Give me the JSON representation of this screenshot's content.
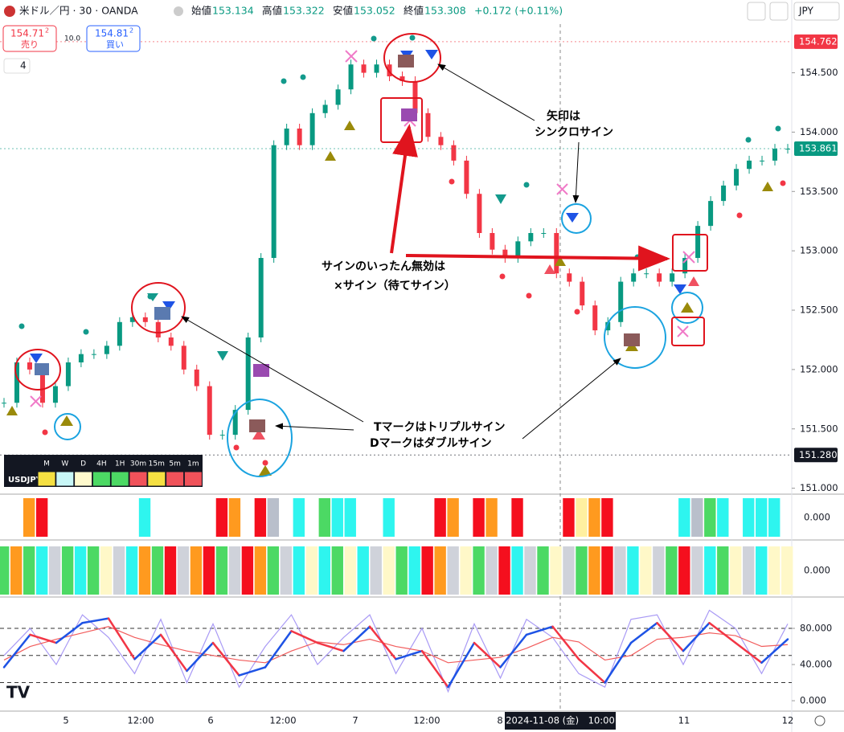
{
  "header": {
    "symbol": "米ドル／円 · 30 · OANDA",
    "open_label": "始値",
    "open": "153.134",
    "high_label": "高値",
    "high": "153.322",
    "low_label": "安値",
    "low": "153.052",
    "close_label": "終値",
    "close": "153.308",
    "change": "+0.172 (+0.11%)",
    "currency": "JPY"
  },
  "trade": {
    "sell_price": "154.71",
    "sell_sup": "2",
    "sell_label": "売り",
    "spread": "10.0",
    "buy_price": "154.81",
    "buy_sup": "2",
    "buy_label": "買い",
    "indicators_count": "4"
  },
  "table": {
    "symbol": "USDJPY",
    "timeframes": [
      "M",
      "W",
      "D",
      "4H",
      "1H",
      "30m",
      "15m",
      "5m",
      "1m"
    ],
    "colors": [
      "#f5e042",
      "#c8f7f7",
      "#fffacd",
      "#4cd964",
      "#4cd964",
      "#f0525a",
      "#f5e042",
      "#f0525a",
      "#f0525a"
    ]
  },
  "annotations": {
    "arrow_note": [
      "矢印は",
      "シンクロサイン"
    ],
    "cancel_note": [
      "サインのいったん無効は",
      "×サイン（待てサイン）"
    ],
    "mark_note": [
      "Tマークはトリプルサイン",
      "Dマークはダブルサイン"
    ]
  },
  "chart_data": [
    {
      "type": "candlestick",
      "up_color": "#089981",
      "down_color": "#f23645",
      "close": [
        151.72,
        152.06,
        152.0,
        151.72,
        151.86,
        152.06,
        152.13,
        152.13,
        152.2,
        152.4,
        152.44,
        152.4,
        152.27,
        152.2,
        152.0,
        151.86,
        151.45,
        151.45,
        151.66,
        152.27,
        152.94,
        153.89,
        154.03,
        153.89,
        154.16,
        154.23,
        154.36,
        154.57,
        154.5,
        154.57,
        154.47,
        154.43,
        154.16,
        153.96,
        153.89,
        153.76,
        153.48,
        153.15,
        153.01,
        152.94,
        153.08,
        153.15,
        153.15,
        152.81,
        152.74,
        152.54,
        152.33,
        152.4,
        152.74,
        152.81,
        152.81,
        152.74,
        152.81,
        152.94,
        153.21,
        153.42,
        153.55,
        153.69,
        153.76,
        153.76,
        153.86,
        153.86
      ],
      "ylim": [
        150.95,
        154.91
      ],
      "yticks": [
        {
          "value": 151,
          "label": "151.000"
        },
        {
          "value": 151.5,
          "label": "151.500"
        },
        {
          "value": 152,
          "label": "152.000"
        },
        {
          "value": 152.5,
          "label": "152.500"
        },
        {
          "value": 153,
          "label": "153.000"
        },
        {
          "value": 153.5,
          "label": "153.500"
        },
        {
          "value": 154,
          "label": "154.000"
        },
        {
          "value": 154.5,
          "label": "154.500"
        }
      ],
      "price_badges": [
        {
          "value": 154.762,
          "label": "154.762",
          "color": "#f23645"
        },
        {
          "value": 153.861,
          "label": "153.861",
          "color": "#089981"
        },
        {
          "value": 151.28,
          "label": "151.280",
          "color": "#131722"
        }
      ],
      "xlabels": [
        "5",
        "12:00",
        "6",
        "12:00",
        "7",
        "12:00",
        "8",
        "2024-11-08 (金)　10:00",
        "11",
        "12"
      ]
    },
    {
      "type": "stripes",
      "palette": {
        "r": "#f50f1e",
        "o": "#ff9a1f",
        "y": "#fff0a0",
        "c": "#2ef5ef",
        "g": "#4cd964",
        "s": "#b9bfcb",
        "l": "#fff8c8"
      },
      "values": [
        null,
        null,
        "o",
        "r",
        null,
        null,
        null,
        null,
        null,
        null,
        null,
        "c",
        null,
        null,
        null,
        null,
        null,
        "r",
        "o",
        null,
        "r",
        "s",
        null,
        "c",
        null,
        "g",
        "c",
        "c",
        null,
        null,
        "c",
        null,
        null,
        null,
        "r",
        "o",
        null,
        "r",
        "o",
        null,
        "r",
        null,
        null,
        null,
        "r",
        "y",
        "o",
        "r",
        null,
        null,
        null,
        null,
        null,
        "c",
        "s",
        "g",
        "c",
        null,
        "c",
        "c",
        "c",
        null
      ],
      "level": {
        "value": 0,
        "label": "0.000"
      }
    },
    {
      "type": "stripes",
      "palette": {
        "r": "#f50f1e",
        "o": "#ff9a1f",
        "y": "#fff0a0",
        "c": "#2ef5ef",
        "g": "#4cd964",
        "s": "#cfd2da",
        "l": "#fff8c8"
      },
      "values": [
        "g",
        "o",
        "g",
        "c",
        "s",
        "g",
        "c",
        "g",
        "l",
        "s",
        "c",
        "o",
        "g",
        "r",
        "s",
        "o",
        "r",
        "g",
        "s",
        "r",
        "o",
        "g",
        "s",
        "c",
        "l",
        "c",
        "g",
        "l",
        "c",
        "s",
        "l",
        "g",
        "c",
        "r",
        "o",
        "s",
        "l",
        "g",
        "s",
        "r",
        "c",
        "s",
        "g",
        "l",
        "s",
        "g",
        "o",
        "r",
        "s",
        "c",
        "l",
        "s",
        "g",
        "r",
        "s",
        "c",
        "g",
        "l",
        "s",
        "c",
        "l",
        "l"
      ],
      "level": {
        "value": 0,
        "label": "0.000"
      }
    },
    {
      "type": "line",
      "ylim": [
        -11.5,
        112.9
      ],
      "yticks": [
        {
          "value": 0,
          "label": "0.000"
        },
        {
          "value": 40,
          "label": "40.000"
        },
        {
          "value": 80,
          "label": "80.000"
        }
      ],
      "levels": [
        20,
        50,
        80
      ],
      "series": [
        {
          "name": "fast",
          "color": "#f23645",
          "up_color": "#1e53e5",
          "values": [
            37,
            73,
            64,
            86,
            91,
            46,
            73,
            33,
            64,
            28,
            37,
            77,
            64,
            55,
            82,
            46,
            55,
            15,
            64,
            37,
            73,
            82,
            46,
            20,
            64,
            86,
            55,
            86,
            64,
            42,
            68
          ]
        },
        {
          "name": "signal",
          "color": "#f25c5c",
          "values": [
            45,
            60,
            68,
            75,
            82,
            70,
            62,
            55,
            50,
            45,
            42,
            55,
            65,
            62,
            68,
            60,
            55,
            42,
            45,
            48,
            58,
            70,
            65,
            45,
            50,
            68,
            70,
            75,
            72,
            60,
            62
          ]
        },
        {
          "name": "raw",
          "color": "#a99af5",
          "values": [
            50,
            80,
            40,
            95,
            70,
            30,
            90,
            20,
            85,
            15,
            60,
            95,
            40,
            70,
            95,
            30,
            80,
            10,
            85,
            25,
            90,
            70,
            30,
            15,
            90,
            95,
            40,
            100,
            80,
            30,
            85
          ]
        }
      ]
    }
  ]
}
